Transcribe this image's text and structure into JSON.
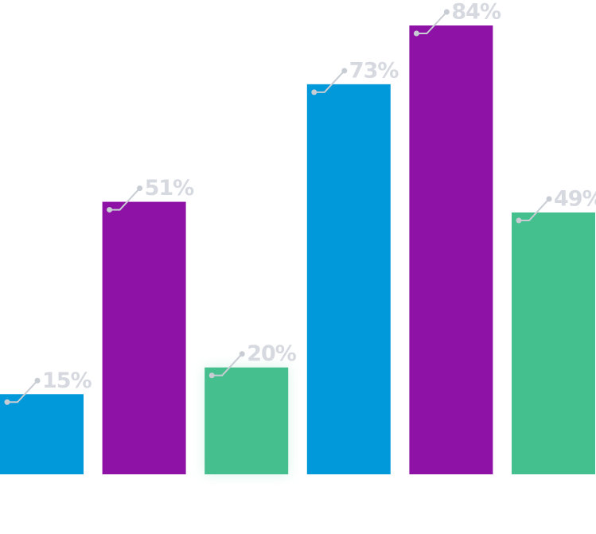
{
  "chart_data": {
    "type": "bar",
    "categories": [
      null,
      null,
      null,
      null,
      null,
      null
    ],
    "values": [
      15,
      51,
      20,
      73,
      84,
      49
    ],
    "value_labels": [
      "15%",
      "51%",
      "20%",
      "73%",
      "84%",
      "49%"
    ],
    "colors": [
      "#0299db",
      "#8e12a5",
      "#44bf8e",
      "#0299db",
      "#8e12a5",
      "#44bf8e"
    ],
    "ylim": [
      0,
      84
    ]
  }
}
